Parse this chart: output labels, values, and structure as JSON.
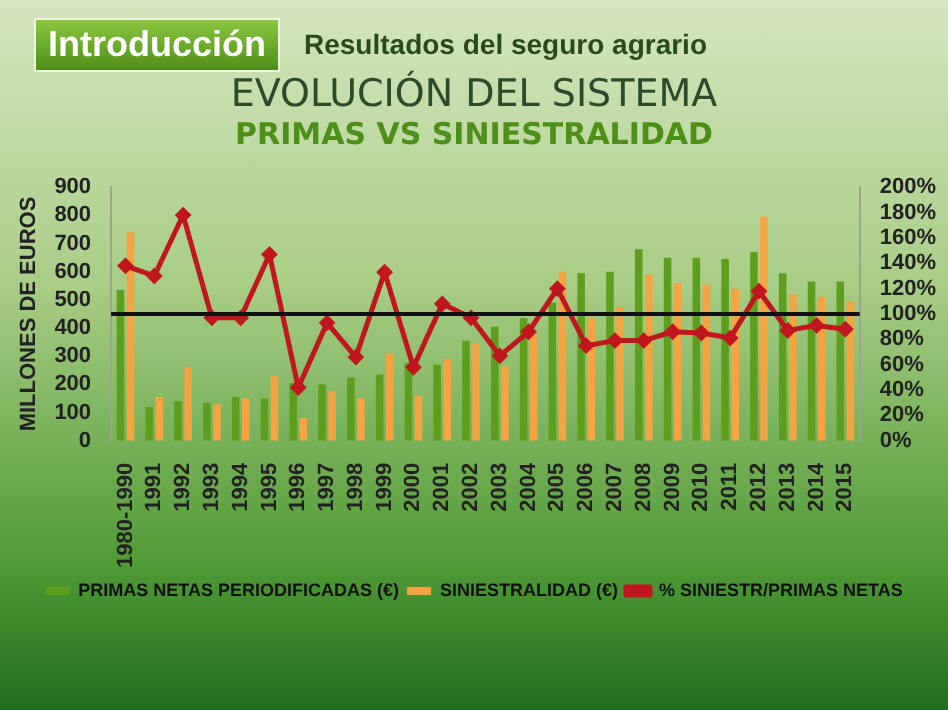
{
  "chart_data": {
    "type": "bar",
    "title": "EVOLUCIÓN DEL SISTEMA",
    "subtitle": "PRIMAS VS SINIESTRALIDAD",
    "annotations": [
      "Introducción",
      "Resultados del seguro agrario"
    ],
    "ylabel": "MILLONES DE EUROS",
    "categories": [
      "1980-1990",
      "1991",
      "1992",
      "1993",
      "1994",
      "1995",
      "1996",
      "1997",
      "1998",
      "1999",
      "2000",
      "2001",
      "2002",
      "2003",
      "2004",
      "2005",
      "2006",
      "2007",
      "2008",
      "2009",
      "2010",
      "2011",
      "2012",
      "2013",
      "2014",
      "2015"
    ],
    "series": [
      {
        "name": "PRIMAS NETAS PERIODIFICADAS (€)",
        "color": "#5e9e1e",
        "values": [
          535,
          120,
          140,
          135,
          155,
          150,
          205,
          200,
          225,
          235,
          275,
          270,
          355,
          405,
          435,
          490,
          595,
          600,
          680,
          650,
          650,
          645,
          670,
          595,
          565,
          565
        ]
      },
      {
        "name": "SINIESTRALIDAD (€)",
        "color": "#f5a443",
        "values": [
          740,
          155,
          260,
          130,
          150,
          230,
          80,
          175,
          150,
          310,
          160,
          290,
          345,
          265,
          375,
          600,
          435,
          475,
          590,
          560,
          555,
          540,
          795,
          520,
          510,
          495
        ]
      },
      {
        "name": "% SINIESTR/PRIMAS NETAS",
        "type": "line",
        "axis": "y2",
        "marker": "diamond",
        "color": "#c0161e",
        "values": [
          138,
          130,
          178,
          97,
          97,
          147,
          42,
          93,
          66,
          133,
          58,
          108,
          97,
          67,
          86,
          120,
          75,
          79,
          79,
          86,
          85,
          81,
          118,
          87,
          91,
          88
        ]
      }
    ],
    "ylim": [
      0,
      900
    ],
    "yticks": [
      0,
      100,
      200,
      300,
      400,
      500,
      600,
      700,
      800,
      900
    ],
    "y2lim": [
      0,
      200
    ],
    "y2ticks": [
      {
        "value": 0,
        "label": "0%"
      },
      {
        "value": 20,
        "label": "20%"
      },
      {
        "value": 40,
        "label": "40%"
      },
      {
        "value": 60,
        "label": "60%"
      },
      {
        "value": 80,
        "label": "80%"
      },
      {
        "value": 100,
        "label": "100%"
      },
      {
        "value": 120,
        "label": "120%"
      },
      {
        "value": 140,
        "label": "140%"
      },
      {
        "value": 160,
        "label": "160%"
      },
      {
        "value": 180,
        "label": "180%"
      },
      {
        "value": 200,
        "label": "200%"
      }
    ],
    "ref_lines": [
      {
        "axis": "y2",
        "value": 100,
        "color": "#111111"
      }
    ],
    "legend": "bottom"
  }
}
